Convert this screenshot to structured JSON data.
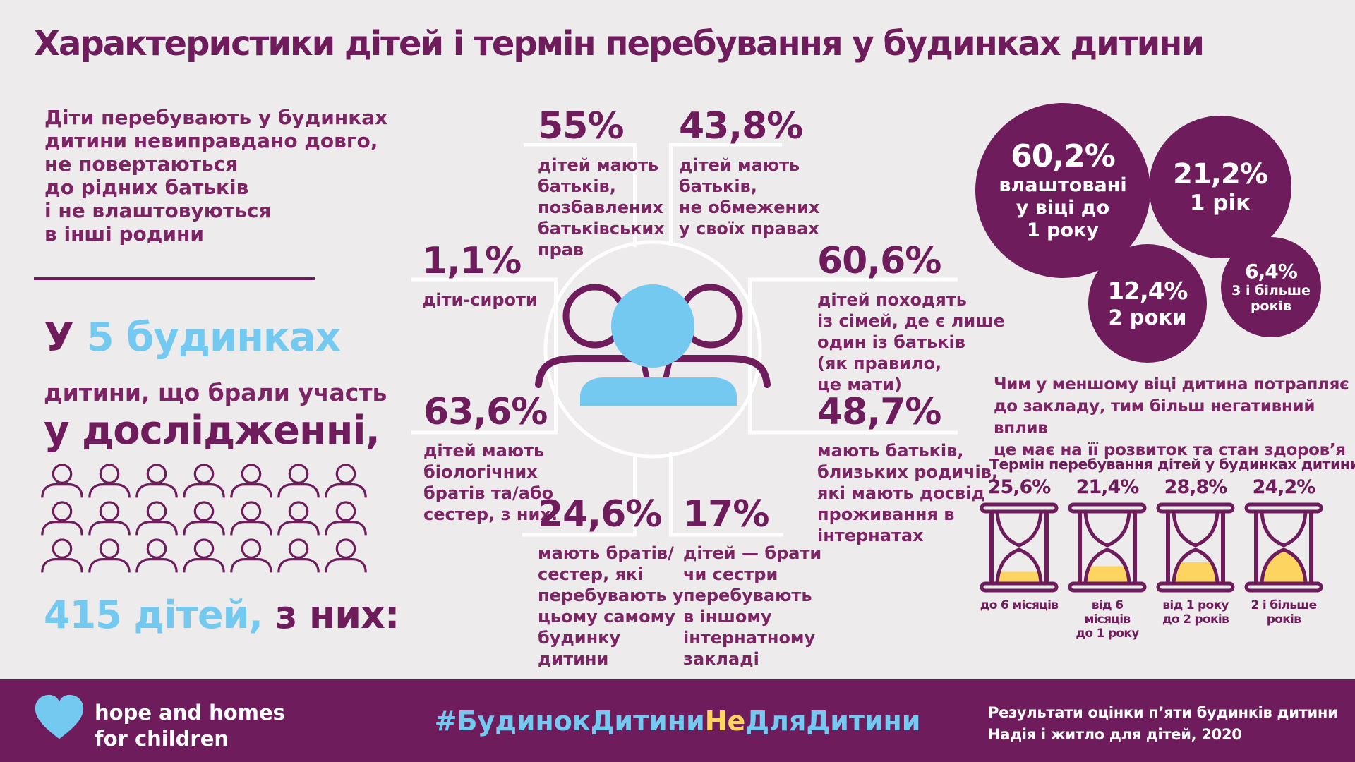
{
  "title": "Характеристики дітей і термін перебування у будинках дитини",
  "colors": {
    "background": "#edebeb",
    "purple_dark": "#6e1c5b",
    "purple_text": "#7d2465",
    "light_blue": "#74c9f0",
    "yellow": "#fcd45f",
    "white": "#ffffff"
  },
  "left": {
    "intro": "Діти перебувають у будинках\nдитини невиправдано довго,\nне повертаються\nдо рідних батьків\nі не влаштовуються\nв інші родини",
    "houses_prefix": "У ",
    "houses_highlight": "5 будинках",
    "houses_line2": "дитини, що брали участь",
    "houses_line3": "у дослідженні,",
    "people_grid": {
      "rows": 3,
      "cols": 7
    },
    "count_highlight": "415 дітей,",
    "count_suffix": " з них:"
  },
  "center": {
    "stats": [
      {
        "id": "stat-55",
        "value": "55%",
        "desc": "дітей мають\nбатьків,\nпозбавлених\nбатьківських\nправ"
      },
      {
        "id": "stat-43-8",
        "value": "43,8%",
        "desc": "дітей мають\nбатьків,\nне обмежених\nу своїх правах"
      },
      {
        "id": "stat-1-1",
        "value": "1,1%",
        "desc": "діти-сироти"
      },
      {
        "id": "stat-60-6",
        "value": "60,6%",
        "desc": "дітей походять\nіз сімей, де є лише\nодин із батьків\n(як правило,\nце мати)"
      },
      {
        "id": "stat-63-6",
        "value": "63,6%",
        "desc": "дітей мають\nбіологічних\nбратів та/або\nсестер, з них:"
      },
      {
        "id": "stat-48-7",
        "value": "48,7%",
        "desc": "мають батьків,\nблизьких родичів,\nякі мають досвід\nпроживання в\nінтернатах"
      },
      {
        "id": "stat-24-6",
        "value": "24,6%",
        "desc": "мають братів/\nсестер, які\nперебувають у\nцьому самому\nбудинку\nдитини"
      },
      {
        "id": "stat-17",
        "value": "17%",
        "desc": "дітей — брати\nчи сестри\nперебувають\nв іншому\nінтернатному\nзакладі"
      }
    ]
  },
  "right": {
    "bubbles": [
      {
        "value": "60,2%",
        "label": "влаштовані\nу віці до\n1 року"
      },
      {
        "value": "21,2%",
        "label": "1 рік"
      },
      {
        "value": "12,4%",
        "label": "2 роки"
      },
      {
        "value": "6,4%",
        "label": "3 і більше\nроків"
      }
    ],
    "note": "Чим у меншому віці дитина потрапляє\nдо закладу, тим більш негативний вплив\nце має на її розвиток та стан здоров’я",
    "duration_heading": "Термін перебування дітей у будинках дитини:",
    "durations": [
      {
        "value": "25,6%",
        "label": "до 6 місяців",
        "fill": 0.33
      },
      {
        "value": "21,4%",
        "label": "від 6 місяців\nдо 1 року",
        "fill": 0.5
      },
      {
        "value": "28,8%",
        "label": "від 1 року\nдо 2 років",
        "fill": 0.62
      },
      {
        "value": "24,2%",
        "label": "2 і більше\nроків",
        "fill": 1
      }
    ]
  },
  "footer": {
    "logo_text": "hope and homes\nfor children",
    "hashtag_part1": "#БудинокДитини",
    "hashtag_part2": "Не",
    "hashtag_part3": "ДляДитини",
    "source": "Результати оцінки п’яти будинків дитини\nНадія і житло для дітей, 2020"
  }
}
